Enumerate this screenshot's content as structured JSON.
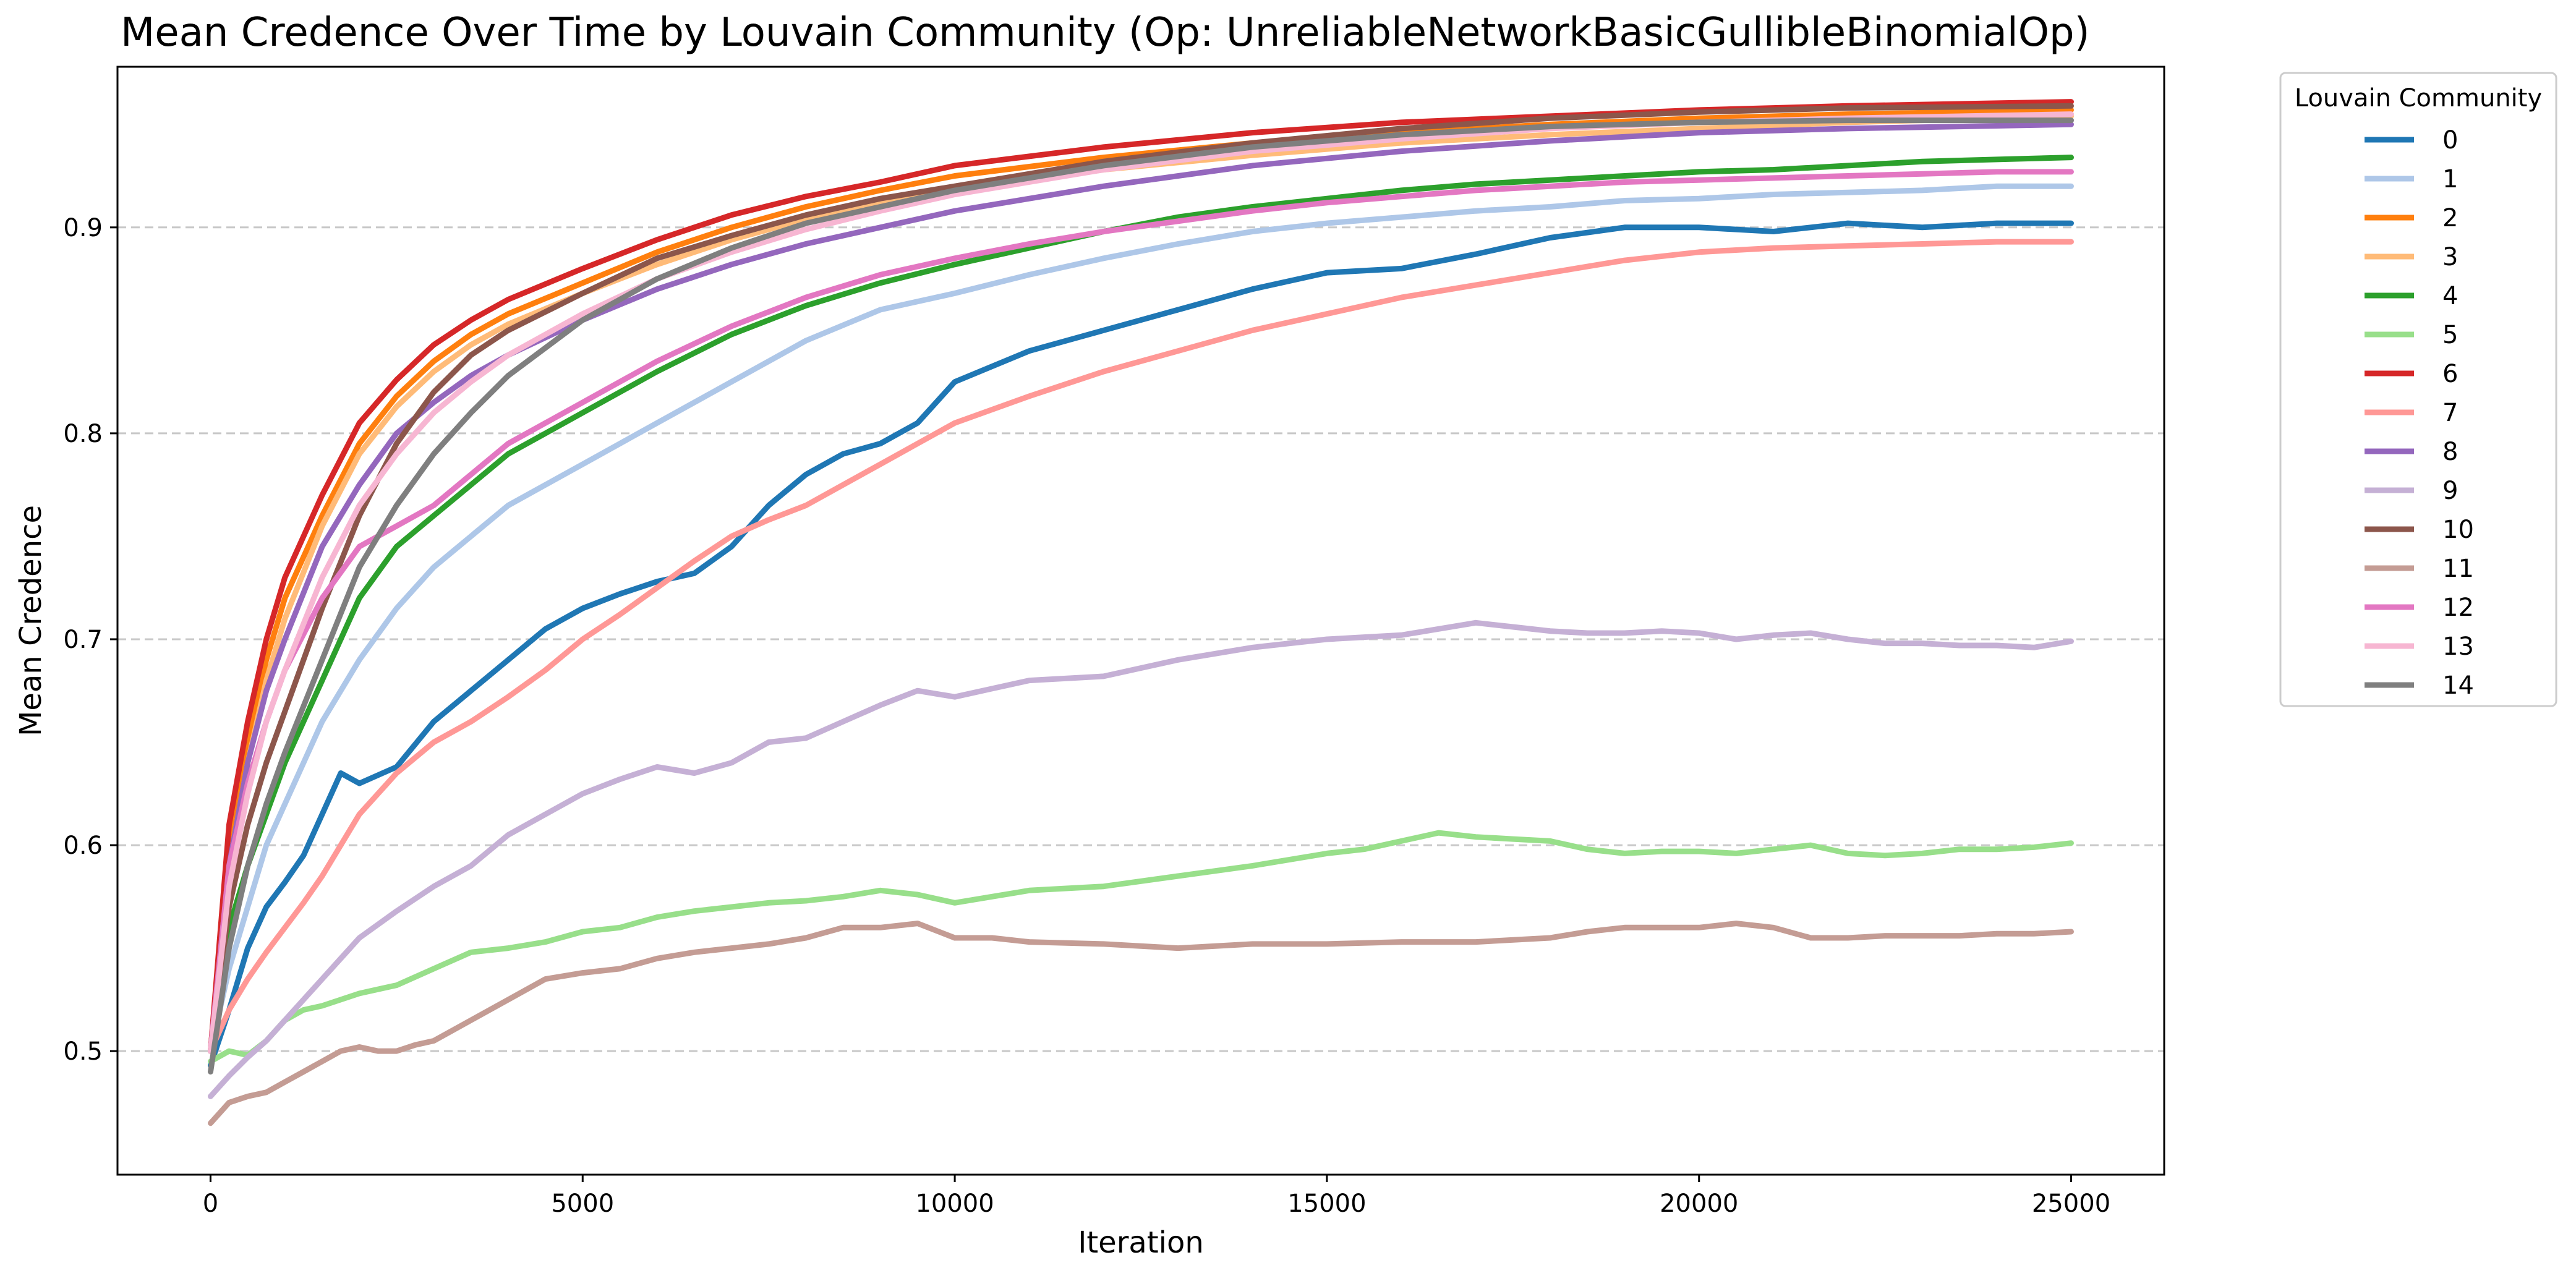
{
  "chart_data": {
    "type": "line",
    "title": "Mean Credence Over Time by Louvain Community (Op: UnreliableNetworkBasicGullibleBinomialOp)",
    "xlabel": "Iteration",
    "ylabel": "Mean Credence",
    "xlim": [
      -1250,
      26250
    ],
    "ylim": [
      0.44,
      0.978
    ],
    "xticks": [
      0,
      5000,
      10000,
      15000,
      20000,
      25000
    ],
    "yticks": [
      0.5,
      0.6,
      0.7,
      0.8,
      0.9
    ],
    "xtick_labels": [
      "0",
      "5000",
      "10000",
      "15000",
      "20000",
      "25000"
    ],
    "ytick_labels": [
      "0.5",
      "0.6",
      "0.7",
      "0.8",
      "0.9"
    ],
    "grid": {
      "y": true,
      "x": false,
      "style": "dashed",
      "color": "#c8c8c8"
    },
    "legend": {
      "title": "Louvain Community",
      "placement": "outside-top-right"
    },
    "series": [
      {
        "name": "0",
        "color": "#1f77b4",
        "x": [
          0,
          250,
          500,
          750,
          1000,
          1250,
          1500,
          1750,
          2000,
          2500,
          3000,
          3500,
          4000,
          4500,
          5000,
          5500,
          6000,
          6500,
          7000,
          7500,
          8000,
          8500,
          9000,
          9500,
          10000,
          11000,
          12000,
          13000,
          14000,
          15000,
          16000,
          17000,
          18000,
          19000,
          20000,
          21000,
          22000,
          23000,
          24000,
          25000
        ],
        "y": [
          0.493,
          0.52,
          0.55,
          0.57,
          0.582,
          0.595,
          0.615,
          0.635,
          0.63,
          0.638,
          0.66,
          0.675,
          0.69,
          0.705,
          0.715,
          0.722,
          0.728,
          0.732,
          0.745,
          0.765,
          0.78,
          0.79,
          0.795,
          0.805,
          0.825,
          0.84,
          0.85,
          0.86,
          0.87,
          0.878,
          0.88,
          0.887,
          0.895,
          0.9,
          0.9,
          0.898,
          0.902,
          0.9,
          0.902,
          0.902
        ]
      },
      {
        "name": "1",
        "color": "#aec7e8",
        "x": [
          0,
          250,
          500,
          750,
          1000,
          1500,
          2000,
          2500,
          3000,
          3500,
          4000,
          4500,
          5000,
          6000,
          7000,
          8000,
          9000,
          10000,
          11000,
          12000,
          13000,
          14000,
          15000,
          16000,
          17000,
          18000,
          19000,
          20000,
          21000,
          22000,
          23000,
          24000,
          25000
        ],
        "y": [
          0.5,
          0.54,
          0.57,
          0.6,
          0.62,
          0.66,
          0.69,
          0.715,
          0.735,
          0.75,
          0.765,
          0.775,
          0.785,
          0.805,
          0.825,
          0.845,
          0.86,
          0.868,
          0.877,
          0.885,
          0.892,
          0.898,
          0.902,
          0.905,
          0.908,
          0.91,
          0.913,
          0.914,
          0.916,
          0.917,
          0.918,
          0.92,
          0.92
        ]
      },
      {
        "name": "2",
        "color": "#ff7f0e",
        "x": [
          0,
          250,
          500,
          750,
          1000,
          1500,
          2000,
          2500,
          3000,
          3500,
          4000,
          5000,
          6000,
          7000,
          8000,
          9000,
          10000,
          12000,
          14000,
          16000,
          18000,
          20000,
          22000,
          25000
        ],
        "y": [
          0.5,
          0.6,
          0.65,
          0.69,
          0.72,
          0.76,
          0.795,
          0.818,
          0.835,
          0.848,
          0.858,
          0.873,
          0.888,
          0.9,
          0.91,
          0.918,
          0.925,
          0.934,
          0.941,
          0.946,
          0.95,
          0.953,
          0.955,
          0.957
        ]
      },
      {
        "name": "3",
        "color": "#ffbb78",
        "x": [
          0,
          250,
          500,
          750,
          1000,
          1500,
          2000,
          2500,
          3000,
          3500,
          4000,
          5000,
          6000,
          7000,
          8000,
          9000,
          10000,
          12000,
          14000,
          16000,
          18000,
          20000,
          22000,
          25000
        ],
        "y": [
          0.5,
          0.59,
          0.64,
          0.68,
          0.71,
          0.755,
          0.79,
          0.813,
          0.83,
          0.843,
          0.853,
          0.868,
          0.882,
          0.894,
          0.904,
          0.912,
          0.918,
          0.928,
          0.935,
          0.941,
          0.945,
          0.948,
          0.951,
          0.954
        ]
      },
      {
        "name": "4",
        "color": "#2ca02c",
        "x": [
          0,
          250,
          500,
          750,
          1000,
          1500,
          2000,
          2500,
          3000,
          3500,
          4000,
          4500,
          5000,
          6000,
          7000,
          8000,
          9000,
          10000,
          11000,
          12000,
          13000,
          14000,
          15000,
          16000,
          17000,
          18000,
          19000,
          20000,
          21000,
          22000,
          23000,
          24000,
          25000
        ],
        "y": [
          0.5,
          0.56,
          0.59,
          0.615,
          0.64,
          0.68,
          0.72,
          0.745,
          0.76,
          0.775,
          0.79,
          0.8,
          0.81,
          0.83,
          0.848,
          0.862,
          0.873,
          0.882,
          0.89,
          0.898,
          0.905,
          0.91,
          0.914,
          0.918,
          0.921,
          0.923,
          0.925,
          0.927,
          0.928,
          0.93,
          0.932,
          0.933,
          0.934
        ]
      },
      {
        "name": "5",
        "color": "#98df8a",
        "x": [
          0,
          250,
          500,
          750,
          1000,
          1250,
          1500,
          1750,
          2000,
          2250,
          2500,
          3000,
          3500,
          4000,
          4500,
          5000,
          5500,
          6000,
          6500,
          7000,
          7500,
          8000,
          8500,
          9000,
          9500,
          10000,
          10500,
          11000,
          12000,
          13000,
          14000,
          15000,
          15500,
          16000,
          16500,
          17000,
          17500,
          18000,
          18500,
          19000,
          19500,
          20000,
          20500,
          21000,
          21500,
          22000,
          22500,
          23000,
          23500,
          24000,
          24500,
          25000
        ],
        "y": [
          0.495,
          0.5,
          0.498,
          0.505,
          0.515,
          0.52,
          0.522,
          0.525,
          0.528,
          0.53,
          0.532,
          0.54,
          0.548,
          0.55,
          0.553,
          0.558,
          0.56,
          0.565,
          0.568,
          0.57,
          0.572,
          0.573,
          0.575,
          0.578,
          0.576,
          0.572,
          0.575,
          0.578,
          0.58,
          0.585,
          0.59,
          0.596,
          0.598,
          0.602,
          0.606,
          0.604,
          0.603,
          0.602,
          0.598,
          0.596,
          0.597,
          0.597,
          0.596,
          0.598,
          0.6,
          0.596,
          0.595,
          0.596,
          0.598,
          0.598,
          0.599,
          0.601
        ]
      },
      {
        "name": "6",
        "color": "#d62728",
        "x": [
          0,
          250,
          500,
          750,
          1000,
          1500,
          2000,
          2500,
          3000,
          3500,
          4000,
          5000,
          6000,
          7000,
          8000,
          9000,
          10000,
          12000,
          14000,
          16000,
          18000,
          20000,
          22000,
          25000
        ],
        "y": [
          0.5,
          0.61,
          0.66,
          0.7,
          0.73,
          0.77,
          0.805,
          0.826,
          0.843,
          0.855,
          0.865,
          0.88,
          0.894,
          0.906,
          0.915,
          0.922,
          0.93,
          0.939,
          0.946,
          0.951,
          0.954,
          0.957,
          0.959,
          0.961
        ]
      },
      {
        "name": "7",
        "color": "#ff9896",
        "x": [
          0,
          250,
          500,
          750,
          1000,
          1250,
          1500,
          1750,
          2000,
          2500,
          3000,
          3500,
          4000,
          4500,
          5000,
          5500,
          6000,
          6500,
          7000,
          7500,
          8000,
          8500,
          9000,
          9500,
          10000,
          11000,
          12000,
          13000,
          14000,
          15000,
          16000,
          17000,
          18000,
          19000,
          20000,
          21000,
          22000,
          23000,
          24000,
          25000
        ],
        "y": [
          0.5,
          0.52,
          0.535,
          0.548,
          0.56,
          0.572,
          0.585,
          0.6,
          0.615,
          0.635,
          0.65,
          0.66,
          0.672,
          0.685,
          0.7,
          0.712,
          0.725,
          0.738,
          0.75,
          0.758,
          0.765,
          0.775,
          0.785,
          0.795,
          0.805,
          0.818,
          0.83,
          0.84,
          0.85,
          0.858,
          0.866,
          0.872,
          0.878,
          0.884,
          0.888,
          0.89,
          0.891,
          0.892,
          0.893,
          0.893
        ]
      },
      {
        "name": "8",
        "color": "#9467bd",
        "x": [
          0,
          250,
          500,
          750,
          1000,
          1500,
          2000,
          2500,
          3000,
          3500,
          4000,
          5000,
          6000,
          7000,
          8000,
          9000,
          10000,
          12000,
          14000,
          16000,
          18000,
          20000,
          22000,
          25000
        ],
        "y": [
          0.5,
          0.59,
          0.64,
          0.675,
          0.7,
          0.745,
          0.775,
          0.8,
          0.815,
          0.828,
          0.838,
          0.855,
          0.87,
          0.882,
          0.892,
          0.9,
          0.908,
          0.92,
          0.93,
          0.937,
          0.942,
          0.946,
          0.948,
          0.95
        ]
      },
      {
        "name": "9",
        "color": "#c5b0d5",
        "x": [
          0,
          250,
          500,
          750,
          1000,
          1250,
          1500,
          1750,
          2000,
          2500,
          3000,
          3500,
          4000,
          4500,
          5000,
          5500,
          6000,
          6500,
          7000,
          7500,
          8000,
          8500,
          9000,
          9500,
          10000,
          10500,
          11000,
          12000,
          13000,
          14000,
          15000,
          16000,
          16500,
          17000,
          17500,
          18000,
          18500,
          19000,
          19500,
          20000,
          20500,
          21000,
          21500,
          22000,
          22500,
          23000,
          23500,
          24000,
          24500,
          25000
        ],
        "y": [
          0.478,
          0.488,
          0.497,
          0.505,
          0.515,
          0.525,
          0.535,
          0.545,
          0.555,
          0.568,
          0.58,
          0.59,
          0.605,
          0.615,
          0.625,
          0.632,
          0.638,
          0.635,
          0.64,
          0.65,
          0.652,
          0.66,
          0.668,
          0.675,
          0.672,
          0.676,
          0.68,
          0.682,
          0.69,
          0.696,
          0.7,
          0.702,
          0.705,
          0.708,
          0.706,
          0.704,
          0.703,
          0.703,
          0.704,
          0.703,
          0.7,
          0.702,
          0.703,
          0.7,
          0.698,
          0.698,
          0.697,
          0.697,
          0.696,
          0.699
        ]
      },
      {
        "name": "10",
        "color": "#8c564b",
        "x": [
          0,
          250,
          500,
          750,
          1000,
          1500,
          2000,
          2500,
          3000,
          3500,
          4000,
          5000,
          6000,
          7000,
          8000,
          9000,
          10000,
          12000,
          14000,
          16000,
          18000,
          20000,
          22000,
          25000
        ],
        "y": [
          0.5,
          0.57,
          0.61,
          0.64,
          0.665,
          0.715,
          0.76,
          0.795,
          0.82,
          0.838,
          0.85,
          0.868,
          0.885,
          0.896,
          0.906,
          0.914,
          0.92,
          0.932,
          0.941,
          0.948,
          0.953,
          0.956,
          0.958,
          0.959
        ]
      },
      {
        "name": "11",
        "color": "#c49c94",
        "x": [
          0,
          250,
          500,
          750,
          1000,
          1250,
          1500,
          1750,
          2000,
          2250,
          2500,
          2750,
          3000,
          3500,
          4000,
          4500,
          5000,
          5500,
          6000,
          6500,
          7000,
          7500,
          8000,
          8500,
          9000,
          9500,
          10000,
          10500,
          11000,
          12000,
          13000,
          14000,
          15000,
          16000,
          17000,
          18000,
          18500,
          19000,
          19500,
          20000,
          20500,
          21000,
          21500,
          22000,
          22500,
          23000,
          23500,
          24000,
          24500,
          25000
        ],
        "y": [
          0.465,
          0.475,
          0.478,
          0.48,
          0.485,
          0.49,
          0.495,
          0.5,
          0.502,
          0.5,
          0.5,
          0.503,
          0.505,
          0.515,
          0.525,
          0.535,
          0.538,
          0.54,
          0.545,
          0.548,
          0.55,
          0.552,
          0.555,
          0.56,
          0.56,
          0.562,
          0.555,
          0.555,
          0.553,
          0.552,
          0.55,
          0.552,
          0.552,
          0.553,
          0.553,
          0.555,
          0.558,
          0.56,
          0.56,
          0.56,
          0.562,
          0.56,
          0.555,
          0.555,
          0.556,
          0.556,
          0.556,
          0.557,
          0.557,
          0.558
        ]
      },
      {
        "name": "12",
        "color": "#e377c2",
        "x": [
          0,
          250,
          500,
          750,
          1000,
          1500,
          2000,
          2500,
          3000,
          3500,
          4000,
          4500,
          5000,
          6000,
          7000,
          8000,
          9000,
          10000,
          11000,
          12000,
          13000,
          14000,
          15000,
          16000,
          17000,
          18000,
          19000,
          20000,
          21000,
          22000,
          23000,
          24000,
          25000
        ],
        "y": [
          0.5,
          0.59,
          0.63,
          0.66,
          0.685,
          0.72,
          0.745,
          0.755,
          0.765,
          0.78,
          0.795,
          0.805,
          0.815,
          0.835,
          0.852,
          0.866,
          0.877,
          0.885,
          0.892,
          0.898,
          0.903,
          0.908,
          0.912,
          0.915,
          0.918,
          0.92,
          0.922,
          0.923,
          0.924,
          0.925,
          0.926,
          0.927,
          0.927
        ]
      },
      {
        "name": "13",
        "color": "#f7b6d2",
        "x": [
          0,
          250,
          500,
          750,
          1000,
          1500,
          2000,
          2500,
          3000,
          3500,
          4000,
          5000,
          6000,
          7000,
          8000,
          9000,
          10000,
          12000,
          14000,
          16000,
          18000,
          20000,
          22000,
          25000
        ],
        "y": [
          0.5,
          0.58,
          0.625,
          0.66,
          0.685,
          0.73,
          0.765,
          0.79,
          0.81,
          0.825,
          0.838,
          0.858,
          0.875,
          0.888,
          0.899,
          0.908,
          0.916,
          0.928,
          0.937,
          0.943,
          0.948,
          0.951,
          0.953,
          0.955
        ]
      },
      {
        "name": "14",
        "color": "#7f7f7f",
        "x": [
          0,
          250,
          500,
          750,
          1000,
          1500,
          2000,
          2500,
          3000,
          3500,
          4000,
          5000,
          6000,
          7000,
          8000,
          9000,
          10000,
          12000,
          14000,
          16000,
          18000,
          20000,
          22000,
          25000
        ],
        "y": [
          0.49,
          0.55,
          0.59,
          0.62,
          0.645,
          0.69,
          0.735,
          0.765,
          0.79,
          0.81,
          0.828,
          0.855,
          0.875,
          0.89,
          0.902,
          0.91,
          0.918,
          0.93,
          0.939,
          0.945,
          0.949,
          0.951,
          0.952,
          0.952
        ]
      }
    ]
  }
}
